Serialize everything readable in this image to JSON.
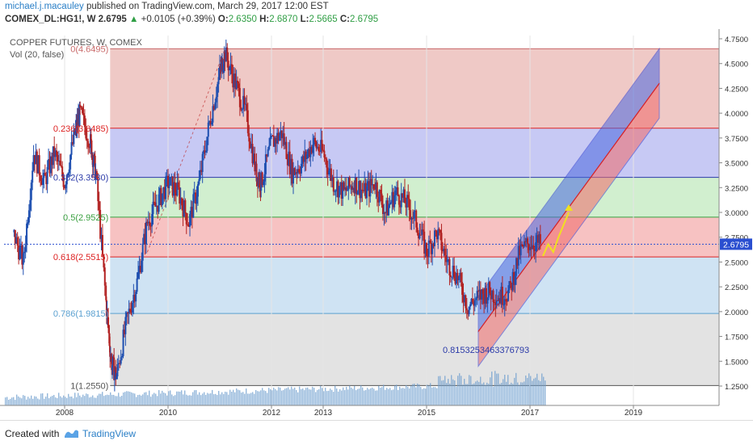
{
  "header": {
    "author": "michael.j.macauley",
    "published": "published on TradingView.com, March 29, 2017 12:00 EST",
    "symbol": "COMEX_DL:HG1!, W",
    "last": "2.6795",
    "change": "+0.0105 (+0.39%)",
    "o_label": "O:",
    "o_value": "2.6350",
    "h_label": "H:",
    "h_value": "2.6870",
    "l_label": "L:",
    "l_value": "2.5665",
    "c_label": "C:",
    "c_value": "2.6795"
  },
  "chart": {
    "title": "COPPER FUTURES, W, COMEX",
    "volume_label": "Vol (20, false)",
    "price_tag": "2.6795",
    "annotation": "0.8153253463376793",
    "colors": {
      "fib_top": "#efc9c6",
      "fib_blue": "#c7c9f4",
      "fib_green": "#d1efcf",
      "fib_red": "#f7c2c2",
      "fib_light": "#cfe3f3",
      "fib_gray": "#e3e3e3",
      "candle_up": "#1e4fb0",
      "candle_down": "#b22222",
      "channel_blue": "#4a68e0",
      "channel_red": "#f06a6a",
      "volume": "#6f9fcf",
      "projection": "#f0e020"
    },
    "icons": [
      "up-triangle-icon",
      "tradingview-logo-icon"
    ]
  },
  "chart_data": {
    "type": "line",
    "title": "COPPER FUTURES, W, COMEX",
    "xlabel": "",
    "ylabel": "",
    "ylim": [
      1.1,
      4.8
    ],
    "x_ticks": [
      "2008",
      "2010",
      "2012",
      "2013",
      "2015",
      "2017",
      "2019"
    ],
    "y_ticks": [
      "4.7500",
      "4.5000",
      "4.2500",
      "4.0000",
      "3.7500",
      "3.5000",
      "3.2500",
      "3.0000",
      "2.7500",
      "2.5000",
      "2.2500",
      "2.0000",
      "1.7500",
      "1.5000",
      "1.2500"
    ],
    "fib_levels": [
      {
        "label": "0(4.6495)",
        "value": 4.6495
      },
      {
        "label": "0.236(3.8485)",
        "value": 3.8485
      },
      {
        "label": "0.382(3.3530)",
        "value": 3.353
      },
      {
        "label": "0.5(2.9525)",
        "value": 2.9525
      },
      {
        "label": "0.618(2.5515)",
        "value": 2.5515
      },
      {
        "label": "0.786(1.9815)",
        "value": 1.9815
      },
      {
        "label": "1(1.2550)",
        "value": 1.255
      }
    ],
    "series": [
      {
        "x": [
          2007.0,
          2007.2,
          2007.4,
          2007.6,
          2007.8,
          2008.0,
          2008.2,
          2008.3,
          2008.5,
          2008.6,
          2008.8,
          2008.9,
          2009.0,
          2009.2,
          2009.4,
          2009.6,
          2009.8,
          2010.0,
          2010.2,
          2010.4,
          2010.6,
          2010.8,
          2011.0,
          2011.1,
          2011.3,
          2011.5,
          2011.7,
          2011.8,
          2012.0,
          2012.2,
          2012.4,
          2012.6,
          2012.8,
          2013.0,
          2013.2,
          2013.4,
          2013.6,
          2013.8,
          2014.0,
          2014.2,
          2014.4,
          2014.6,
          2014.8,
          2015.0,
          2015.2,
          2015.4,
          2015.6,
          2015.8,
          2016.0,
          2016.2,
          2016.4,
          2016.6,
          2016.8,
          2017.0,
          2017.2
        ],
        "values": [
          2.8,
          2.5,
          3.6,
          3.3,
          3.6,
          3.3,
          3.8,
          4.0,
          3.7,
          3.4,
          2.1,
          1.5,
          1.35,
          1.9,
          2.3,
          2.9,
          3.1,
          3.3,
          3.2,
          2.9,
          3.3,
          3.9,
          4.4,
          4.6,
          4.3,
          4.0,
          3.4,
          3.3,
          3.7,
          3.8,
          3.4,
          3.5,
          3.7,
          3.6,
          3.3,
          3.2,
          3.3,
          3.2,
          3.3,
          3.0,
          3.2,
          3.1,
          2.9,
          2.6,
          2.8,
          2.5,
          2.35,
          2.05,
          2.15,
          2.2,
          2.15,
          2.2,
          2.6,
          2.7,
          2.68
        ]
      }
    ]
  }
}
